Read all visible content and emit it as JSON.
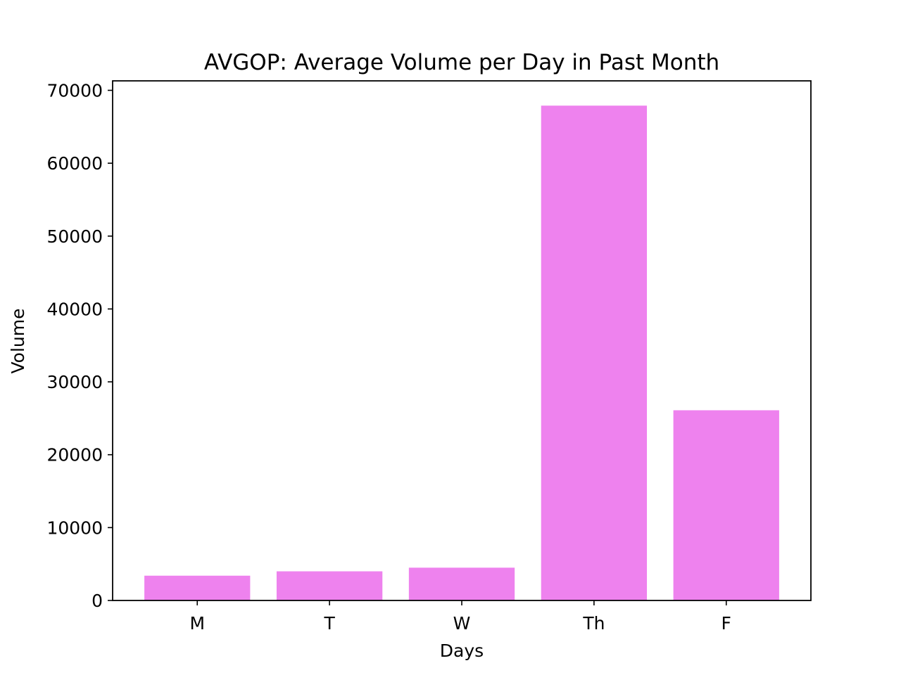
{
  "chart_data": {
    "type": "bar",
    "title": "AVGOP: Average Volume per Day in Past Month",
    "xlabel": "Days",
    "ylabel": "Volume",
    "categories": [
      "M",
      "T",
      "W",
      "Th",
      "F"
    ],
    "values": [
      3400,
      4000,
      4500,
      67900,
      26100
    ],
    "ylim": [
      0,
      71300
    ],
    "yticks": [
      0,
      10000,
      20000,
      30000,
      40000,
      50000,
      60000,
      70000
    ],
    "bar_color": "#ee82ee",
    "grid": false,
    "legend": "none"
  }
}
